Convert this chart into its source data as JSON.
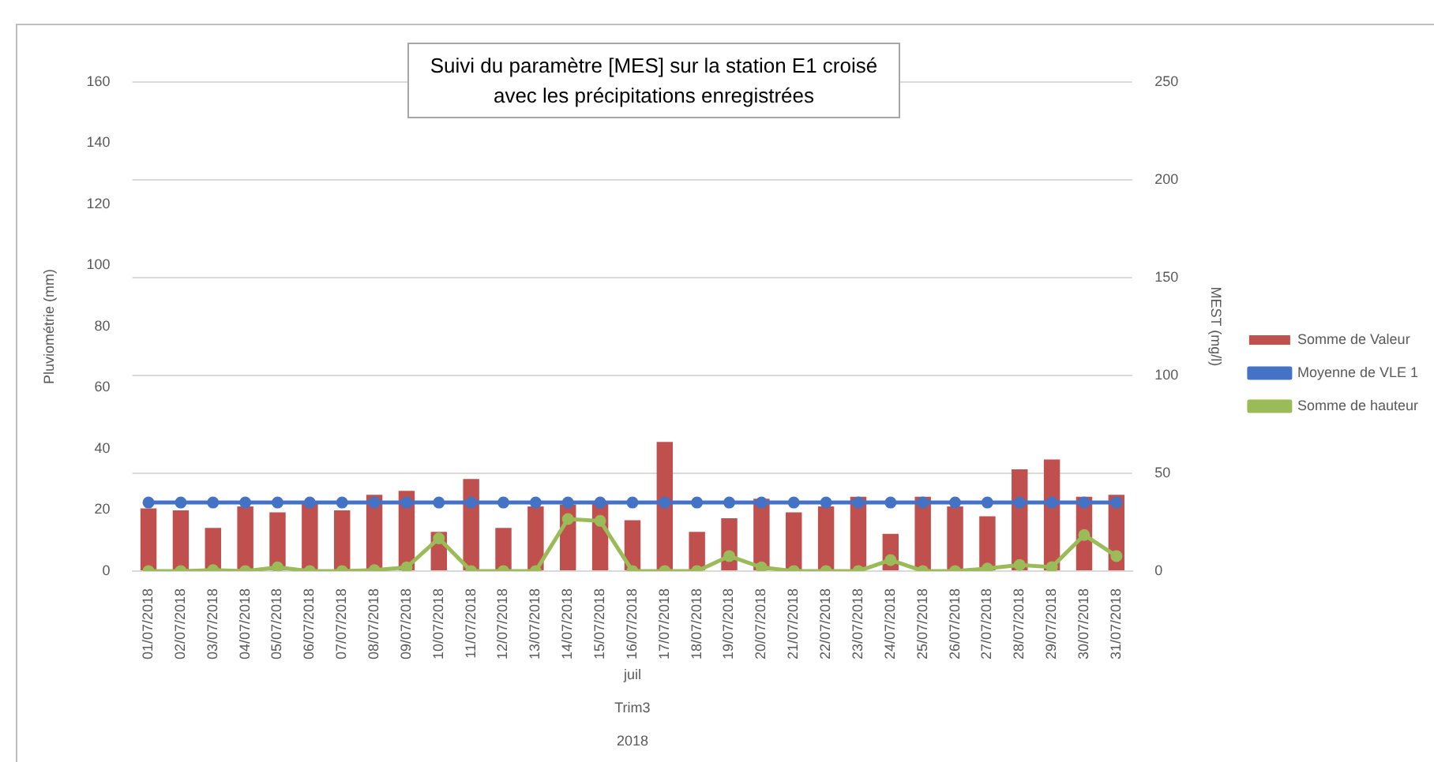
{
  "chart_data": {
    "type": "bar",
    "title": "Suivi du paramètre [MES] sur la station E1 croisé avec les précipitations enregistrées",
    "ylabel": "Pluviométrie (mm)",
    "y2label": "MEST (mg/l)",
    "categories": [
      "01/07/2018",
      "02/07/2018",
      "03/07/2018",
      "04/07/2018",
      "05/07/2018",
      "06/07/2018",
      "07/07/2018",
      "08/07/2018",
      "09/07/2018",
      "10/07/2018",
      "11/07/2018",
      "12/07/2018",
      "13/07/2018",
      "14/07/2018",
      "15/07/2018",
      "16/07/2018",
      "17/07/2018",
      "18/07/2018",
      "19/07/2018",
      "20/07/2018",
      "21/07/2018",
      "22/07/2018",
      "23/07/2018",
      "24/07/2018",
      "25/07/2018",
      "26/07/2018",
      "27/07/2018",
      "28/07/2018",
      "29/07/2018",
      "30/07/2018",
      "31/07/2018"
    ],
    "series": [
      {
        "name": "Somme de Valeur",
        "axis": "y2",
        "color": "#c0504d",
        "values": [
          32,
          31,
          22,
          33,
          30,
          35,
          31,
          39,
          41,
          20,
          47,
          22,
          33,
          34,
          35,
          26,
          66,
          20,
          27,
          37,
          30,
          33,
          38,
          19,
          38,
          33,
          28,
          52,
          57,
          38,
          39
        ]
      },
      {
        "name": "Moyenne de VLE 1",
        "type": "line",
        "axis": "y2",
        "color": "#4472c4",
        "values": [
          35,
          35,
          35,
          35,
          35,
          35,
          35,
          35,
          35,
          35,
          35,
          35,
          35,
          35,
          35,
          35,
          35,
          35,
          35,
          35,
          35,
          35,
          35,
          35,
          35,
          35,
          35,
          35,
          35,
          35,
          35
        ]
      },
      {
        "name": "Somme de hauteur",
        "type": "line",
        "axis": "y",
        "color": "#9bbb59",
        "values": [
          0,
          0,
          0.3,
          0,
          1.2,
          0,
          0,
          0.3,
          1.2,
          10.7,
          0,
          0,
          0,
          17,
          16.4,
          0,
          0,
          0,
          4.9,
          1.2,
          0,
          0,
          0,
          3.6,
          0,
          0,
          0.8,
          2,
          1.3,
          11.8,
          4.9
        ]
      }
    ],
    "ylim": [
      0,
      160
    ],
    "yticks": [
      0,
      20,
      40,
      60,
      80,
      100,
      120,
      140,
      160
    ],
    "y2lim": [
      0,
      250
    ],
    "y2ticks": [
      0,
      50,
      100,
      150,
      200,
      250
    ],
    "grid": "y",
    "legend": "right",
    "marker": "circle",
    "annotations": [
      "juil",
      "Trim3",
      "2018"
    ]
  }
}
